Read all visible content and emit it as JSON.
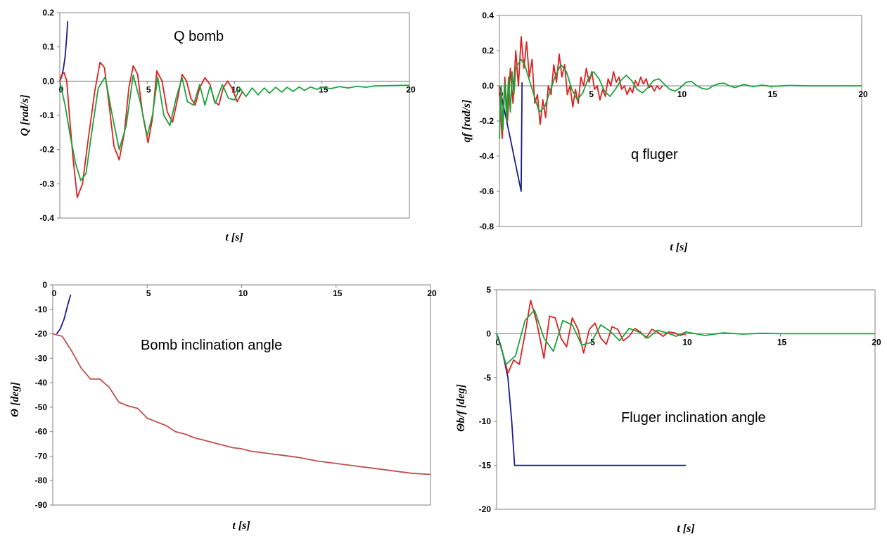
{
  "chart_data": [
    {
      "type": "line",
      "annotation": "Q bomb",
      "xlabel": "t [s]",
      "ylabel": "Q [rad/s]",
      "xlim": [
        0,
        20
      ],
      "ylim": [
        -0.4,
        0.2
      ],
      "xticks": [
        "0",
        "5",
        "10",
        "15",
        "20"
      ],
      "xtick_values": [
        0,
        5,
        10,
        15,
        20
      ],
      "yticks": [
        "0.2",
        "0.1",
        "0.0",
        "-0.1",
        "-0.2",
        "-0.3",
        "-0.4"
      ],
      "ytick_values": [
        0.2,
        0.1,
        0.0,
        -0.1,
        -0.2,
        -0.3,
        -0.4
      ],
      "axis_color": "#808080",
      "series": [
        {
          "color": "#1a1a8c",
          "x": [
            0,
            0.1,
            0.2,
            0.3,
            0.4,
            0.45
          ],
          "y": [
            0,
            0.012,
            0.035,
            0.07,
            0.13,
            0.175
          ]
        },
        {
          "color": "#e02020",
          "x": [
            0,
            0.12,
            0.25,
            0.4,
            0.55,
            0.75,
            1.0,
            1.3,
            1.6,
            2.0,
            2.3,
            2.55,
            2.8,
            3.1,
            3.4,
            3.7,
            3.95,
            4.2,
            4.45,
            4.75,
            5.05,
            5.3,
            5.55,
            5.85,
            6.15,
            6.45,
            6.75,
            7.0,
            7.25,
            7.5,
            7.75,
            8.0,
            8.3,
            8.6,
            8.85,
            9.1,
            9.35,
            9.6,
            9.85,
            10.15,
            10.45
          ],
          "y": [
            0,
            0.02,
            0.025,
            0.0,
            -0.1,
            -0.22,
            -0.34,
            -0.3,
            -0.18,
            -0.03,
            0.055,
            0.04,
            -0.06,
            -0.19,
            -0.23,
            -0.15,
            -0.02,
            0.045,
            0.02,
            -0.1,
            -0.18,
            -0.11,
            0.03,
            0.0,
            -0.09,
            -0.12,
            -0.05,
            0.02,
            0.0,
            -0.05,
            -0.07,
            -0.02,
            0.01,
            -0.01,
            -0.06,
            -0.07,
            -0.02,
            0.0,
            -0.02,
            -0.06,
            -0.03
          ]
        },
        {
          "color": "#1aa33c",
          "x": [
            0,
            0.3,
            0.6,
            0.9,
            1.2,
            1.5,
            1.8,
            2.2,
            2.6,
            3.0,
            3.4,
            3.8,
            4.2,
            4.6,
            5.0,
            5.3,
            5.6,
            5.95,
            6.3,
            6.65,
            7.0,
            7.3,
            7.65,
            8.0,
            8.3,
            8.6,
            8.9,
            9.3,
            9.65,
            10.0,
            10.3,
            10.65,
            11.0,
            11.35,
            11.7,
            12.0,
            12.35,
            12.7,
            13.0,
            13.35,
            13.7,
            14.0,
            14.35,
            14.7,
            15.0,
            15.5,
            16.0,
            16.5,
            17.0,
            17.5,
            18.0,
            19.0,
            20.0
          ],
          "y": [
            0,
            -0.07,
            -0.16,
            -0.24,
            -0.29,
            -0.27,
            -0.16,
            -0.02,
            0.012,
            -0.1,
            -0.2,
            -0.13,
            0.018,
            -0.06,
            -0.16,
            -0.1,
            0.012,
            -0.1,
            -0.13,
            -0.05,
            0.01,
            -0.06,
            -0.07,
            -0.01,
            -0.07,
            -0.015,
            -0.065,
            -0.01,
            -0.05,
            -0.055,
            -0.02,
            -0.045,
            -0.02,
            -0.04,
            -0.02,
            -0.035,
            -0.018,
            -0.032,
            -0.018,
            -0.03,
            -0.017,
            -0.027,
            -0.017,
            -0.024,
            -0.018,
            -0.022,
            -0.016,
            -0.02,
            -0.015,
            -0.018,
            -0.014,
            -0.013,
            -0.012
          ]
        }
      ]
    },
    {
      "type": "line",
      "annotation": "q fluger",
      "xlabel": "t [s]",
      "ylabel": "qf [rad/s]",
      "xlim": [
        0,
        20
      ],
      "ylim": [
        -0.8,
        0.4
      ],
      "xticks": [
        "0",
        "5",
        "10",
        "15",
        "20"
      ],
      "xtick_values": [
        0,
        5,
        10,
        15,
        20
      ],
      "yticks": [
        "0.4",
        "0.2",
        "0.0",
        "-0.2",
        "-0.4",
        "-0.6",
        "-0.8"
      ],
      "ytick_values": [
        0.4,
        0.2,
        0.0,
        -0.2,
        -0.4,
        -0.6,
        -0.8
      ],
      "axis_color": "#808080",
      "series": [
        {
          "color": "#1a1a8c",
          "x": [
            0,
            0.1,
            0.3,
            0.6,
            0.9,
            1.1,
            1.2,
            1.25
          ],
          "y": [
            0,
            -0.05,
            -0.15,
            -0.3,
            -0.45,
            -0.55,
            -0.6,
            0.02
          ]
        },
        {
          "color": "#e02020",
          "x": [
            0,
            0.15,
            0.3,
            0.45,
            0.6,
            0.75,
            0.9,
            1.05,
            1.2,
            1.35,
            1.5,
            1.65,
            1.8,
            1.95,
            2.1,
            2.25,
            2.4,
            2.55,
            2.7,
            2.85,
            3.0,
            3.15,
            3.3,
            3.45,
            3.6,
            3.75,
            3.9,
            4.05,
            4.2,
            4.35,
            4.5,
            4.65,
            4.8,
            4.95,
            5.1,
            5.25,
            5.4,
            5.55,
            5.7,
            5.85,
            6.0,
            6.15,
            6.3,
            6.45,
            6.6,
            6.75,
            6.9,
            7.05,
            7.2,
            7.35,
            7.5,
            7.65,
            7.8,
            7.95,
            8.1,
            8.25,
            8.4,
            8.55,
            8.7,
            8.85,
            9.0
          ],
          "y": [
            0,
            -0.3,
            0.05,
            -0.2,
            0.1,
            -0.1,
            0.2,
            0.0,
            0.28,
            0.1,
            0.25,
            0.05,
            0.15,
            -0.1,
            -0.05,
            -0.22,
            -0.08,
            -0.18,
            0.0,
            -0.05,
            0.12,
            0.02,
            0.18,
            0.05,
            0.12,
            -0.05,
            0.0,
            -0.12,
            -0.02,
            -0.1,
            0.05,
            0.0,
            0.1,
            0.02,
            0.08,
            -0.02,
            0.0,
            -0.08,
            -0.02,
            -0.06,
            0.04,
            0.0,
            0.08,
            0.02,
            0.05,
            -0.02,
            0.0,
            -0.05,
            -0.01,
            -0.04,
            0.03,
            0.0,
            0.05,
            0.01,
            0.04,
            -0.01,
            0.0,
            -0.03,
            0.0,
            -0.02,
            0.0
          ]
        },
        {
          "color": "#1aa33c",
          "x": [
            0,
            0.1,
            0.2,
            0.3,
            0.4,
            0.5,
            0.6,
            0.7,
            0.8,
            0.9,
            1.0,
            1.2,
            1.4,
            1.6,
            1.9,
            2.2,
            2.5,
            2.8,
            3.1,
            3.4,
            3.7,
            4.0,
            4.3,
            4.6,
            4.9,
            5.2,
            5.5,
            5.8,
            6.1,
            6.4,
            6.7,
            7.0,
            7.3,
            7.6,
            7.9,
            8.2,
            8.5,
            8.8,
            9.1,
            9.4,
            9.7,
            10.0,
            10.3,
            10.6,
            10.9,
            11.2,
            11.5,
            11.8,
            12.1,
            12.4,
            12.7,
            13.0,
            13.5,
            14.0,
            14.5,
            15.0,
            16.0,
            17.0,
            18.0,
            19.0,
            20.0
          ],
          "y": [
            -0.3,
            0.0,
            -0.25,
            0.02,
            -0.2,
            0.05,
            -0.15,
            0.08,
            -0.05,
            0.1,
            0.12,
            0.15,
            0.12,
            0.05,
            -0.05,
            -0.15,
            -0.12,
            -0.03,
            0.06,
            0.12,
            0.08,
            -0.02,
            -0.08,
            -0.04,
            0.04,
            0.08,
            0.04,
            -0.03,
            -0.06,
            -0.02,
            0.03,
            0.06,
            0.03,
            -0.02,
            -0.04,
            -0.01,
            0.03,
            0.04,
            0.01,
            -0.02,
            -0.03,
            -0.01,
            0.02,
            0.025,
            0.0,
            -0.015,
            -0.02,
            0.0,
            0.012,
            0.015,
            0.0,
            -0.01,
            0.008,
            -0.005,
            0.004,
            -0.003,
            0.002,
            0.0,
            0.0,
            0.0,
            0.0
          ]
        }
      ]
    },
    {
      "type": "line",
      "annotation": "Bomb inclination angle",
      "xlabel": "t [s]",
      "ylabel": "Θ [deg]",
      "xlim": [
        0,
        20
      ],
      "ylim": [
        -90,
        0
      ],
      "xticks": [
        "0",
        "5",
        "10",
        "15",
        "20"
      ],
      "xtick_values": [
        0,
        5,
        10,
        15,
        20
      ],
      "yticks": [
        "0",
        "-10",
        "-20",
        "-30",
        "-40",
        "-50",
        "-60",
        "-70",
        "-80",
        "-90"
      ],
      "ytick_values": [
        0,
        -10,
        -20,
        -30,
        -40,
        -50,
        -60,
        -70,
        -80,
        -90
      ],
      "axis_color": "#808080",
      "series": [
        {
          "color": "#1a1a8c",
          "x": [
            0.2,
            0.4,
            0.6,
            0.8,
            0.95
          ],
          "y": [
            -20,
            -18,
            -14,
            -8,
            -4
          ]
        },
        {
          "color": "#c0504d",
          "x": [
            0,
            0.5,
            1.0,
            1.5,
            2.0,
            2.5,
            3.0,
            3.5,
            4.0,
            4.5,
            5.0,
            5.5,
            6.0,
            6.5,
            7.0,
            7.5,
            8.0,
            8.5,
            9.0,
            9.5,
            10.0,
            10.5,
            11.0,
            11.5,
            12.0,
            13.0,
            14.0,
            15.0,
            16.0,
            17.0,
            18.0,
            19.0,
            20.0
          ],
          "y": [
            -20,
            -21,
            -27,
            -34,
            -38.5,
            -38.5,
            -42,
            -48,
            -49.5,
            -50.5,
            -54.5,
            -56,
            -57.5,
            -60,
            -61,
            -62.5,
            -63.5,
            -64.5,
            -65.5,
            -66.5,
            -67,
            -68,
            -68.5,
            -69,
            -69.5,
            -70.5,
            -72,
            -73,
            -74,
            -75,
            -76,
            -77,
            -77.5
          ]
        }
      ]
    },
    {
      "type": "line",
      "annotation": "Fluger inclination angle",
      "xlabel": "t [s]",
      "ylabel": "Θb/f [deg]",
      "xlim": [
        0,
        20
      ],
      "ylim": [
        -20,
        5
      ],
      "xticks": [
        "0",
        "5",
        "10",
        "15",
        "20"
      ],
      "xtick_values": [
        0,
        5,
        10,
        15,
        20
      ],
      "yticks": [
        "5",
        "0",
        "-5",
        "-10",
        "-15",
        "-20"
      ],
      "ytick_values": [
        5,
        0,
        -5,
        -10,
        -15,
        -20
      ],
      "axis_color": "#808080",
      "series": [
        {
          "color": "#1a1a8c",
          "x": [
            0,
            0.1,
            0.3,
            0.6,
            0.8,
            0.95,
            10.0
          ],
          "y": [
            0,
            -0.5,
            -2.0,
            -5.0,
            -10.0,
            -15.0,
            -15.0
          ]
        },
        {
          "color": "#e02020",
          "x": [
            0,
            0.3,
            0.6,
            0.9,
            1.2,
            1.5,
            1.8,
            2.1,
            2.5,
            2.8,
            3.1,
            3.4,
            3.7,
            4.0,
            4.3,
            4.6,
            4.9,
            5.2,
            5.5,
            5.8,
            6.1,
            6.4,
            6.7,
            7.0,
            7.3,
            7.6,
            7.9,
            8.2,
            8.5,
            8.8,
            9.1,
            9.4,
            9.7,
            10.0
          ],
          "y": [
            0,
            -2,
            -4.5,
            -3,
            -3.5,
            0,
            3.8,
            1.5,
            -2.8,
            2.0,
            1.8,
            -0.5,
            -1.5,
            1.8,
            0.5,
            -2.2,
            0.5,
            1.2,
            -0.5,
            -1.2,
            0.8,
            0.5,
            -0.8,
            -0.3,
            0.6,
            0.2,
            -0.5,
            0.5,
            0.2,
            -0.3,
            0.2,
            0.1,
            -0.2,
            0.0
          ]
        },
        {
          "color": "#1aa33c",
          "x": [
            0,
            0.5,
            1.0,
            1.5,
            2.0,
            2.5,
            3.0,
            3.5,
            4.0,
            4.5,
            5.0,
            5.5,
            6.0,
            6.5,
            7.0,
            7.5,
            8.0,
            8.5,
            9.0,
            9.5,
            10.0,
            11.0,
            12.0,
            13.0,
            14.0,
            15.0,
            16.0,
            17.0,
            18.0,
            19.0,
            20.0
          ],
          "y": [
            0,
            -3.5,
            -2.5,
            1.5,
            2.7,
            -0.5,
            -2.0,
            1.5,
            1.0,
            -1.3,
            -1.0,
            1.0,
            0.3,
            -0.8,
            0.6,
            0.2,
            -0.5,
            0.4,
            0.1,
            -0.3,
            0.2,
            -0.2,
            0.1,
            -0.05,
            0.05,
            0.0,
            0.0,
            0.0,
            0.0,
            0.0,
            0.0
          ]
        }
      ]
    }
  ]
}
